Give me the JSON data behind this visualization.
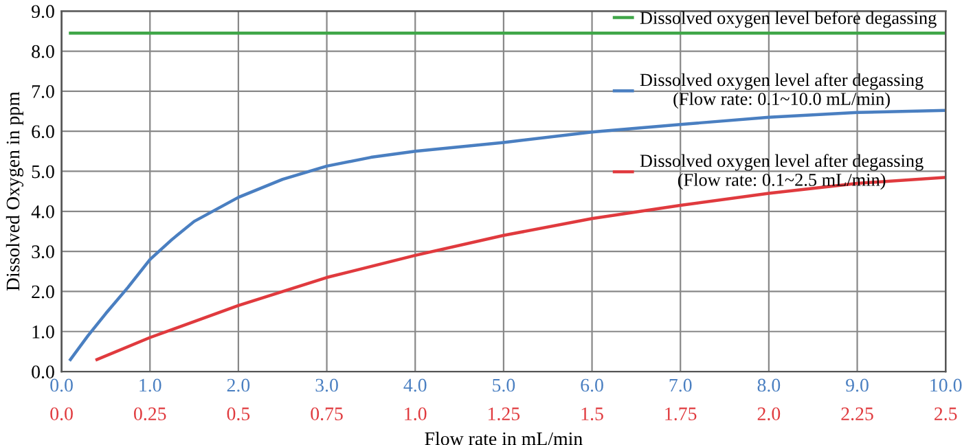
{
  "chart_data": {
    "type": "line",
    "xlabel": "Flow rate in mL/min",
    "ylabel": "Dissolved Oxygen in ppm",
    "xlim": [
      0,
      10
    ],
    "xticks": [
      {
        "value": 0,
        "label": "0.0"
      },
      {
        "value": 1,
        "label": "1.0"
      },
      {
        "value": 2,
        "label": "2.0"
      },
      {
        "value": 3,
        "label": "3.0"
      },
      {
        "value": 4,
        "label": "4.0"
      },
      {
        "value": 5,
        "label": "5.0"
      },
      {
        "value": 6,
        "label": "6.0"
      },
      {
        "value": 7,
        "label": "7.0"
      },
      {
        "value": 8,
        "label": "8.0"
      },
      {
        "value": 9,
        "label": "9.0"
      },
      {
        "value": 10,
        "label": "10.0"
      }
    ],
    "x2lim": [
      0,
      2.5
    ],
    "x2ticks": [
      {
        "value": 0,
        "label": "0.0"
      },
      0.25,
      0.5,
      0.75,
      {
        "value": 1,
        "label": "1.0"
      },
      1.25,
      1.5,
      1.75,
      {
        "value": 2,
        "label": "2.0"
      },
      2.25,
      2.5
    ],
    "ylim": [
      0,
      9
    ],
    "yticks": [
      {
        "value": 0,
        "label": "0.0"
      },
      {
        "value": 1,
        "label": "1.0"
      },
      {
        "value": 2,
        "label": "2.0"
      },
      {
        "value": 3,
        "label": "3.0"
      },
      {
        "value": 4,
        "label": "4.0"
      },
      {
        "value": 5,
        "label": "5.0"
      },
      {
        "value": 6,
        "label": "6.0"
      },
      {
        "value": 7,
        "label": "7.0"
      },
      {
        "value": 8,
        "label": "8.0"
      },
      {
        "value": 9,
        "label": "9.0"
      }
    ],
    "grid": true,
    "legend": "top right",
    "marker": "none",
    "line_style": "solid",
    "series": [
      {
        "name": "Dissolved oxygen level before degassing",
        "color": "#3fa648",
        "x": [
          0.1,
          10.0
        ],
        "values": [
          8.45,
          8.45
        ]
      },
      {
        "name": "Dissolved oxygen level after degassing\n(Flow rate: 0.1~10.0 mL/min)",
        "color": "#4a7fc1",
        "x": [
          0.1,
          0.3,
          0.5,
          0.75,
          1.0,
          1.25,
          1.5,
          2.0,
          2.5,
          3.0,
          3.5,
          4.0,
          5.0,
          6.0,
          7.0,
          8.0,
          9.0,
          10.0
        ],
        "values": [
          0.3,
          0.9,
          1.45,
          2.1,
          2.8,
          3.3,
          3.75,
          4.35,
          4.8,
          5.13,
          5.35,
          5.5,
          5.72,
          5.98,
          6.17,
          6.35,
          6.47,
          6.52
        ]
      },
      {
        "name": "Dissolved oxygen level after degassing\n(Flow rate: 0.1~2.5 mL/min)",
        "color": "#e03a3e",
        "axis": "x2",
        "x": [
          0.1,
          0.25,
          0.5,
          0.75,
          1.0,
          1.25,
          1.5,
          1.75,
          2.0,
          2.25,
          2.5
        ],
        "values": [
          0.3,
          0.85,
          1.65,
          2.35,
          2.9,
          3.4,
          3.82,
          4.15,
          4.45,
          4.7,
          4.85
        ]
      }
    ]
  }
}
